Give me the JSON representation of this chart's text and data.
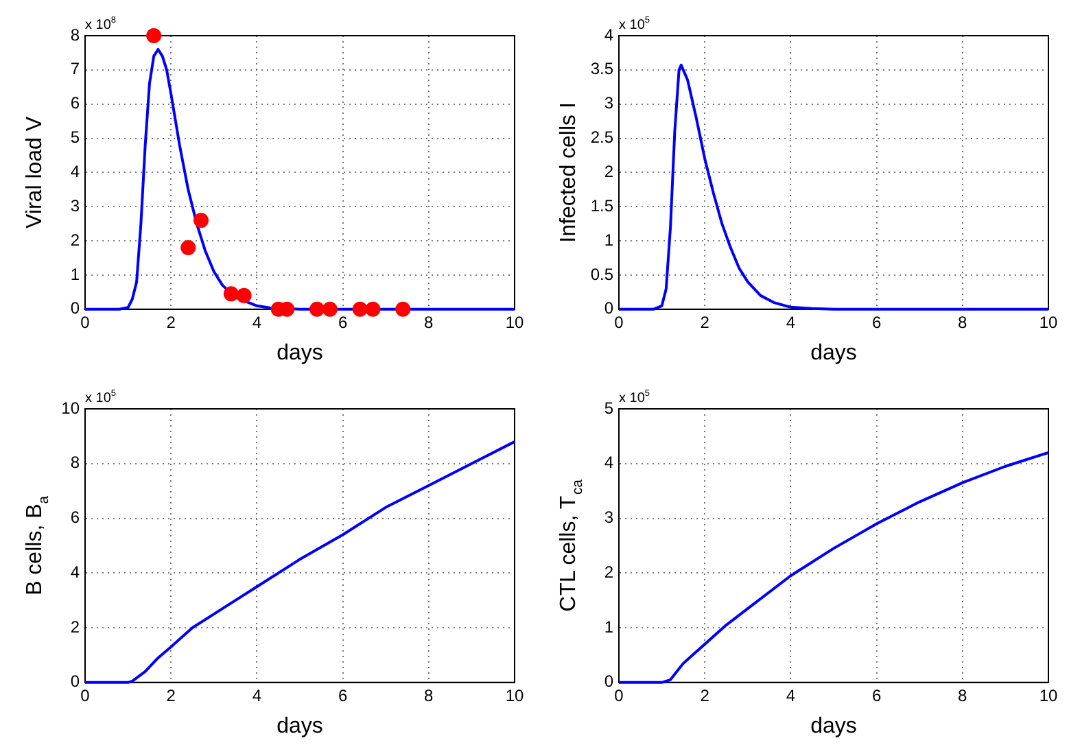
{
  "chart_data": [
    {
      "type": "line",
      "xlabel": "days",
      "ylabel": "Viral load V",
      "annotations": [
        "x 10$^{8}$"
      ],
      "xlim": [
        0,
        10
      ],
      "xticks": [
        0,
        2,
        4,
        6,
        8,
        10
      ],
      "ylim": [
        0,
        8
      ],
      "yticks": [
        0,
        1,
        2,
        3,
        4,
        5,
        6,
        7,
        8
      ],
      "grid": true,
      "line_style": "solid",
      "series": [
        {
          "color": "#0000ff",
          "x": [
            0,
            0.8,
            1.0,
            1.1,
            1.2,
            1.3,
            1.4,
            1.5,
            1.6,
            1.7,
            1.8,
            1.9,
            2.0,
            2.2,
            2.4,
            2.6,
            2.8,
            3.0,
            3.2,
            3.5,
            4.0,
            4.3,
            5.0,
            10
          ],
          "values": [
            0,
            0,
            0.05,
            0.3,
            0.8,
            2.5,
            4.8,
            6.6,
            7.4,
            7.6,
            7.4,
            7.0,
            6.3,
            4.8,
            3.5,
            2.5,
            1.7,
            1.1,
            0.7,
            0.35,
            0.1,
            0.04,
            0,
            0
          ]
        },
        {
          "type": "scatter",
          "marker": "circle",
          "color": "#ff0000",
          "x": [
            1.6,
            2.4,
            2.7,
            3.4,
            3.7,
            4.5,
            4.7,
            5.4,
            5.7,
            6.4,
            6.7,
            7.4
          ],
          "values": [
            8.0,
            1.8,
            2.6,
            0.45,
            0.4,
            0,
            0,
            0,
            0,
            0,
            0,
            0
          ]
        }
      ]
    },
    {
      "type": "line",
      "xlabel": "days",
      "ylabel": "Infected cells I",
      "annotations": [
        "x 10$^{5}$"
      ],
      "xlim": [
        0,
        10
      ],
      "xticks": [
        0,
        2,
        4,
        6,
        8,
        10
      ],
      "ylim": [
        0,
        4
      ],
      "yticks": [
        0,
        0.5,
        1,
        1.5,
        2,
        2.5,
        3,
        3.5,
        4
      ],
      "grid": true,
      "line_style": "solid",
      "series": [
        {
          "color": "#0000ff",
          "x": [
            0,
            0.8,
            1.0,
            1.1,
            1.2,
            1.3,
            1.4,
            1.45,
            1.6,
            1.8,
            2.0,
            2.2,
            2.4,
            2.6,
            2.8,
            3.0,
            3.3,
            3.6,
            4.0,
            4.5,
            5.0,
            10
          ],
          "values": [
            0,
            0,
            0.05,
            0.3,
            1.2,
            2.6,
            3.5,
            3.57,
            3.35,
            2.8,
            2.2,
            1.7,
            1.25,
            0.9,
            0.6,
            0.4,
            0.2,
            0.1,
            0.03,
            0.01,
            0,
            0
          ]
        }
      ]
    },
    {
      "type": "line",
      "xlabel": "days",
      "ylabel": "B cells, B$_{a}$",
      "annotations": [
        "x 10$^{5}$"
      ],
      "xlim": [
        0,
        10
      ],
      "xticks": [
        0,
        2,
        4,
        6,
        8,
        10
      ],
      "ylim": [
        0,
        10
      ],
      "yticks": [
        0,
        2,
        4,
        6,
        8,
        10
      ],
      "grid": true,
      "line_style": "solid",
      "series": [
        {
          "color": "#0000ff",
          "x": [
            0,
            1.0,
            1.1,
            1.4,
            1.7,
            2.0,
            2.5,
            3.0,
            3.5,
            4.0,
            5.0,
            6.0,
            7.0,
            8.0,
            9.0,
            10
          ],
          "values": [
            0,
            0,
            0.05,
            0.4,
            0.9,
            1.3,
            2.0,
            2.5,
            3.0,
            3.5,
            4.5,
            5.4,
            6.4,
            7.2,
            8.0,
            8.8
          ]
        }
      ]
    },
    {
      "type": "line",
      "xlabel": "days",
      "ylabel": "CTL cells, T$_{ca}$",
      "annotations": [
        "x 10$^{5}$"
      ],
      "xlim": [
        0,
        10
      ],
      "xticks": [
        0,
        2,
        4,
        6,
        8,
        10
      ],
      "ylim": [
        0,
        5
      ],
      "yticks": [
        0,
        1,
        2,
        3,
        4,
        5
      ],
      "grid": true,
      "line_style": "solid",
      "series": [
        {
          "color": "#0000ff",
          "x": [
            0,
            1.0,
            1.2,
            1.5,
            2.0,
            2.5,
            3.0,
            4.0,
            5.0,
            6.0,
            7.0,
            8.0,
            9.0,
            10
          ],
          "values": [
            0,
            0,
            0.05,
            0.35,
            0.7,
            1.05,
            1.35,
            1.95,
            2.45,
            2.9,
            3.3,
            3.65,
            3.95,
            4.2
          ]
        }
      ]
    }
  ]
}
